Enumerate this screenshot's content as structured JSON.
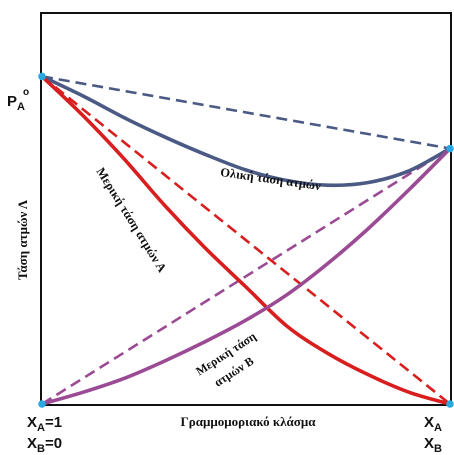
{
  "chart_data": {
    "type": "line",
    "xlabel": "Γραμμομοριακό κλάσμα",
    "ylabel": "Τάση ατμών Λ",
    "xlim": [
      0,
      1
    ],
    "ylim": [
      0,
      1
    ],
    "x_axis": {
      "left": {
        "line1": "X",
        "sub1": "A",
        "val1": "=1",
        "line2": "X",
        "sub2": "B",
        "val2": "=0"
      },
      "right": {
        "line1": "X",
        "sub1": "A",
        "line2": "X",
        "sub2": "B"
      }
    },
    "y_marker": {
      "text": "P",
      "sub": "A",
      "sup": "o",
      "value": 0.84
    },
    "colors": {
      "total": "#4a5a85",
      "partial_A": "#d81e1e",
      "partial_B": "#9b4a94",
      "point": "#2aa9e0"
    },
    "series": [
      {
        "name": "Ολική τάση ατμών",
        "key": "total",
        "style": "solid",
        "x": [
          0,
          0.1,
          0.2,
          0.3,
          0.4,
          0.5,
          0.6,
          0.7,
          0.8,
          0.9,
          1
        ],
        "y": [
          0.84,
          0.79,
          0.735,
          0.685,
          0.64,
          0.6,
          0.573,
          0.561,
          0.568,
          0.598,
          0.655
        ]
      },
      {
        "name": "Μερική τάση ατμών Α",
        "key": "partial_A",
        "style": "solid",
        "x": [
          0,
          0.1,
          0.2,
          0.3,
          0.4,
          0.5,
          0.6,
          0.7,
          0.8,
          0.9,
          1
        ],
        "y": [
          0.84,
          0.74,
          0.63,
          0.51,
          0.4,
          0.3,
          0.2,
          0.13,
          0.075,
          0.03,
          0
        ]
      },
      {
        "name": "Μερική τάση ατμών Β",
        "key": "partial_B",
        "style": "solid",
        "x": [
          0,
          0.1,
          0.2,
          0.3,
          0.4,
          0.5,
          0.6,
          0.7,
          0.8,
          0.9,
          1
        ],
        "y": [
          0,
          0.03,
          0.065,
          0.11,
          0.16,
          0.215,
          0.28,
          0.36,
          0.45,
          0.55,
          0.655
        ]
      },
      {
        "name": "",
        "key": "total",
        "style": "dashed",
        "x": [
          0,
          1
        ],
        "y": [
          0.84,
          0.655
        ]
      },
      {
        "name": "",
        "key": "partial_A",
        "style": "dashed",
        "x": [
          0,
          1
        ],
        "y": [
          0.84,
          0
        ]
      },
      {
        "name": "",
        "key": "partial_B",
        "style": "dashed",
        "x": [
          0,
          1
        ],
        "y": [
          0,
          0.655
        ]
      }
    ],
    "annotations": {
      "total": "Ολική τάση ατμών",
      "partial_A": "Μερική τάση ατμών Α",
      "partial_B_line1": "Μερική τάση",
      "partial_B_line2": "ατμών Β"
    }
  }
}
